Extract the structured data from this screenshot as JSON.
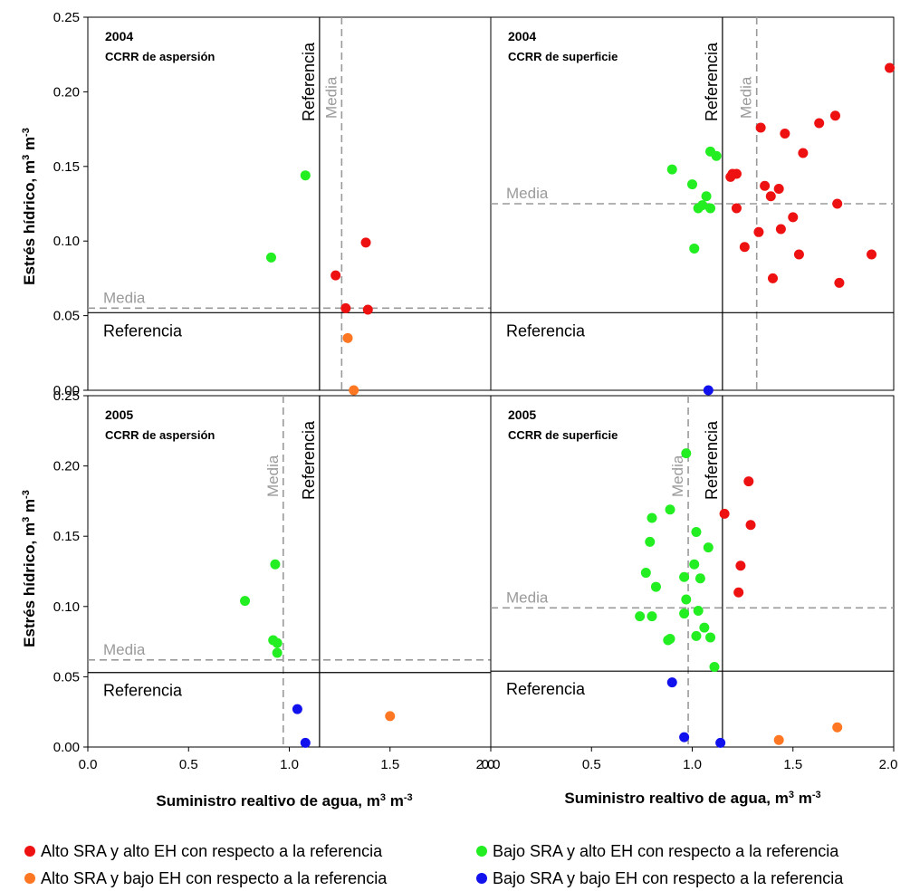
{
  "colors": {
    "alto_sra_alto_eh": "#ee1111",
    "bajo_sra_alto_eh": "#22ee22",
    "alto_sra_bajo_eh": "#ff7722",
    "bajo_sra_bajo_eh": "#1111ee",
    "reference_line": "#000000",
    "mean_line": "#9a9a9a"
  },
  "y_axis_title": "Estrés hídrico, m",
  "y_axis_title_exp": "3",
  "y_axis_title_unit": " m",
  "y_axis_title_unit_exp": "-3",
  "x_axis_title": "Suministro realtivo de agua, m",
  "x_axis_title_exp": "3",
  "x_axis_title_unit": " m",
  "x_axis_title_unit_exp": "-3",
  "legend": [
    {
      "label": "Alto SRA y alto EH con respecto a la referencia",
      "color_key": "alto_sra_alto_eh"
    },
    {
      "label": "Bajo SRA y alto EH con respecto a la referencia",
      "color_key": "bajo_sra_alto_eh"
    },
    {
      "label": "Alto SRA y bajo EH con respecto a la referencia",
      "color_key": "alto_sra_bajo_eh"
    },
    {
      "label": "Bajo SRA y bajo EH con respecto a la referencia",
      "color_key": "bajo_sra_bajo_eh"
    }
  ],
  "chart_data": [
    {
      "type": "scatter",
      "year": "2004",
      "subtitle": "CCRR de aspersión",
      "xlim": [
        0,
        2.0
      ],
      "ylim": [
        0,
        0.25
      ],
      "x_ticks": [
        "0.0",
        "0.5",
        "1.0",
        "1.5",
        "2.0"
      ],
      "y_ticks": [
        "0.00",
        "0.05",
        "0.10",
        "0.15",
        "0.20",
        "0.25"
      ],
      "show_x_ticks": false,
      "reference": {
        "x": 1.15,
        "y": 0.052,
        "label_v": "Referencia",
        "label_h": "Referencia"
      },
      "mean": {
        "x": 1.26,
        "y": 0.055,
        "label_v": "Media",
        "label_h": "Media"
      },
      "series": [
        {
          "category": "alto_sra_alto_eh",
          "points": [
            [
              1.38,
              0.099
            ],
            [
              1.23,
              0.077
            ],
            [
              1.28,
              0.055
            ],
            [
              1.39,
              0.054
            ]
          ]
        },
        {
          "category": "bajo_sra_alto_eh",
          "points": [
            [
              1.08,
              0.144
            ],
            [
              0.91,
              0.089
            ]
          ]
        },
        {
          "category": "alto_sra_bajo_eh",
          "points": [
            [
              1.29,
              0.035
            ],
            [
              1.32,
              0.0
            ]
          ]
        },
        {
          "category": "bajo_sra_bajo_eh",
          "points": []
        }
      ]
    },
    {
      "type": "scatter",
      "year": "2004",
      "subtitle": "CCRR de superficie",
      "xlim": [
        0,
        2.0
      ],
      "ylim": [
        0,
        0.25
      ],
      "x_ticks": [
        "0.0",
        "0.5",
        "1.0",
        "1.5",
        "2.0"
      ],
      "y_ticks": [
        "0.00",
        "0.05",
        "0.10",
        "0.15",
        "0.20",
        "0.25"
      ],
      "show_x_ticks": false,
      "reference": {
        "x": 1.15,
        "y": 0.052,
        "label_v": "Referencia",
        "label_h": "Referencia"
      },
      "mean": {
        "x": 1.32,
        "y": 0.125,
        "label_v": "Media",
        "label_h": "Media"
      },
      "series": [
        {
          "category": "alto_sra_alto_eh",
          "points": [
            [
              1.98,
              0.216
            ],
            [
              1.71,
              0.184
            ],
            [
              1.63,
              0.179
            ],
            [
              1.34,
              0.176
            ],
            [
              1.46,
              0.172
            ],
            [
              1.55,
              0.159
            ],
            [
              1.2,
              0.145
            ],
            [
              1.22,
              0.145
            ],
            [
              1.19,
              0.143
            ],
            [
              1.36,
              0.137
            ],
            [
              1.43,
              0.135
            ],
            [
              1.39,
              0.13
            ],
            [
              1.22,
              0.122
            ],
            [
              1.72,
              0.125
            ],
            [
              1.5,
              0.116
            ],
            [
              1.44,
              0.108
            ],
            [
              1.33,
              0.106
            ],
            [
              1.26,
              0.096
            ],
            [
              1.53,
              0.091
            ],
            [
              1.89,
              0.091
            ],
            [
              1.4,
              0.075
            ],
            [
              1.73,
              0.072
            ]
          ]
        },
        {
          "category": "bajo_sra_alto_eh",
          "points": [
            [
              1.09,
              0.16
            ],
            [
              1.12,
              0.157
            ],
            [
              0.9,
              0.148
            ],
            [
              1.0,
              0.138
            ],
            [
              1.07,
              0.13
            ],
            [
              1.05,
              0.124
            ],
            [
              1.03,
              0.122
            ],
            [
              1.09,
              0.122
            ],
            [
              1.01,
              0.095
            ]
          ]
        },
        {
          "category": "alto_sra_bajo_eh",
          "points": []
        },
        {
          "category": "bajo_sra_bajo_eh",
          "points": [
            [
              1.08,
              0.0
            ]
          ]
        }
      ]
    },
    {
      "type": "scatter",
      "year": "2005",
      "subtitle": "CCRR de aspersión",
      "xlim": [
        0,
        2.0
      ],
      "ylim": [
        0,
        0.25
      ],
      "x_ticks": [
        "0.0",
        "0.5",
        "1.0",
        "1.5",
        "2.0"
      ],
      "y_ticks": [
        "0.00",
        "0.05",
        "0.10",
        "0.15",
        "0.20",
        "0.25"
      ],
      "show_x_ticks": true,
      "reference": {
        "x": 1.15,
        "y": 0.053,
        "label_v": "Referencia",
        "label_h": "Referencia"
      },
      "mean": {
        "x": 0.97,
        "y": 0.062,
        "label_v": "Media",
        "label_h": "Media"
      },
      "series": [
        {
          "category": "alto_sra_alto_eh",
          "points": []
        },
        {
          "category": "bajo_sra_alto_eh",
          "points": [
            [
              0.93,
              0.13
            ],
            [
              0.78,
              0.104
            ],
            [
              0.92,
              0.076
            ],
            [
              0.94,
              0.074
            ],
            [
              0.94,
              0.067
            ]
          ]
        },
        {
          "category": "alto_sra_bajo_eh",
          "points": [
            [
              1.5,
              0.022
            ]
          ]
        },
        {
          "category": "bajo_sra_bajo_eh",
          "points": [
            [
              1.04,
              0.027
            ],
            [
              1.08,
              0.003
            ]
          ]
        }
      ]
    },
    {
      "type": "scatter",
      "year": "2005",
      "subtitle": "CCRR de superficie",
      "xlim": [
        0,
        2.0
      ],
      "ylim": [
        0,
        0.25
      ],
      "x_ticks": [
        "0.0",
        "0.5",
        "1.0",
        "1.5",
        "2.0"
      ],
      "y_ticks": [
        "0.00",
        "0.05",
        "0.10",
        "0.15",
        "0.20",
        "0.25"
      ],
      "show_x_ticks": true,
      "reference": {
        "x": 1.15,
        "y": 0.054,
        "label_v": "Referencia",
        "label_h": "Referencia"
      },
      "mean": {
        "x": 0.98,
        "y": 0.099,
        "label_v": "Media",
        "label_h": "Media"
      },
      "series": [
        {
          "category": "alto_sra_alto_eh",
          "points": [
            [
              1.28,
              0.189
            ],
            [
              1.16,
              0.166
            ],
            [
              1.29,
              0.158
            ],
            [
              1.24,
              0.129
            ],
            [
              1.23,
              0.11
            ]
          ]
        },
        {
          "category": "bajo_sra_alto_eh",
          "points": [
            [
              0.97,
              0.209
            ],
            [
              0.89,
              0.169
            ],
            [
              0.8,
              0.163
            ],
            [
              1.02,
              0.153
            ],
            [
              0.79,
              0.146
            ],
            [
              1.08,
              0.142
            ],
            [
              1.01,
              0.13
            ],
            [
              0.77,
              0.124
            ],
            [
              0.96,
              0.121
            ],
            [
              1.04,
              0.12
            ],
            [
              0.82,
              0.114
            ],
            [
              0.97,
              0.105
            ],
            [
              1.03,
              0.097
            ],
            [
              0.96,
              0.095
            ],
            [
              0.74,
              0.093
            ],
            [
              0.8,
              0.093
            ],
            [
              1.06,
              0.085
            ],
            [
              1.02,
              0.079
            ],
            [
              1.09,
              0.078
            ],
            [
              0.89,
              0.077
            ],
            [
              0.88,
              0.076
            ],
            [
              1.11,
              0.057
            ]
          ]
        },
        {
          "category": "alto_sra_bajo_eh",
          "points": [
            [
              1.72,
              0.014
            ],
            [
              1.43,
              0.005
            ]
          ]
        },
        {
          "category": "bajo_sra_bajo_eh",
          "points": [
            [
              0.9,
              0.046
            ],
            [
              0.96,
              0.007
            ],
            [
              1.14,
              0.003
            ]
          ]
        }
      ]
    }
  ]
}
